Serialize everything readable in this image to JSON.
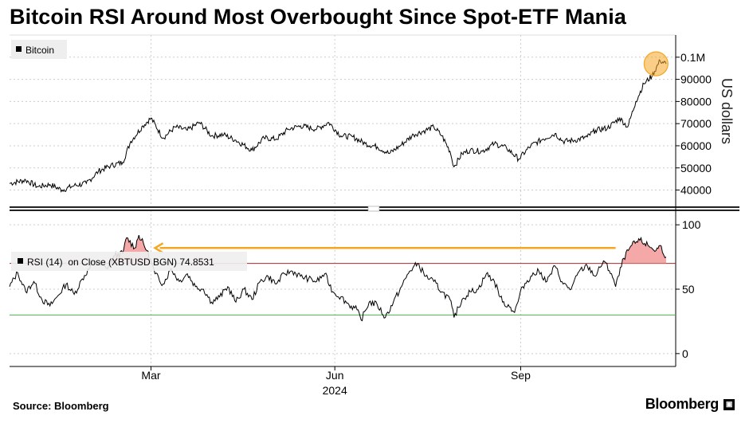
{
  "title": "Bitcoin RSI Around Most Overbought Since Spot-ETF Mania",
  "source": "Source: Bloomberg",
  "brand": "Bloomberg",
  "colors": {
    "price": "#000000",
    "rsi": "#000000",
    "overbought_line": "#a52a2a",
    "oversold_line": "#4caf50",
    "overbought_fill": "#f28b8b",
    "arrow": "#f5a623",
    "highlight": "#f5a623",
    "grid": "#cccccc"
  },
  "chart_data": [
    {
      "type": "line",
      "title": "Bitcoin",
      "legend": "Bitcoin",
      "ylabel": "US dollars",
      "ylim": [
        33000,
        110000
      ],
      "yticks": [
        40000,
        50000,
        60000,
        70000,
        80000,
        90000,
        100000
      ],
      "ytick_labels": [
        "40000",
        "50000",
        "60000",
        "70000",
        "80000",
        "90000",
        "0.1M"
      ],
      "xlim": [
        0,
        325
      ],
      "x_ticks": [
        70,
        161,
        253
      ],
      "x_tick_labels": [
        "Mar",
        "Jun",
        "Sep"
      ],
      "x_year_label": "2024",
      "x_year_pos": 161,
      "anchors": [
        [
          0,
          43000
        ],
        [
          8,
          44500
        ],
        [
          14,
          41500
        ],
        [
          20,
          42500
        ],
        [
          26,
          40000
        ],
        [
          32,
          42000
        ],
        [
          38,
          43000
        ],
        [
          44,
          48500
        ],
        [
          50,
          51000
        ],
        [
          56,
          52500
        ],
        [
          60,
          62000
        ],
        [
          66,
          69000
        ],
        [
          70,
          72500
        ],
        [
          76,
          63500
        ],
        [
          82,
          68500
        ],
        [
          88,
          67000
        ],
        [
          94,
          70500
        ],
        [
          100,
          64500
        ],
        [
          106,
          65000
        ],
        [
          112,
          62500
        ],
        [
          120,
          58000
        ],
        [
          126,
          63500
        ],
        [
          132,
          63000
        ],
        [
          138,
          67500
        ],
        [
          144,
          69000
        ],
        [
          152,
          67500
        ],
        [
          158,
          70500
        ],
        [
          164,
          64500
        ],
        [
          170,
          64000
        ],
        [
          176,
          61000
        ],
        [
          182,
          59500
        ],
        [
          188,
          56500
        ],
        [
          194,
          60500
        ],
        [
          200,
          65000
        ],
        [
          206,
          67000
        ],
        [
          210,
          68500
        ],
        [
          214,
          64500
        ],
        [
          218,
          57500
        ],
        [
          220,
          50500
        ],
        [
          224,
          56500
        ],
        [
          228,
          58000
        ],
        [
          234,
          57500
        ],
        [
          240,
          61000
        ],
        [
          246,
          59000
        ],
        [
          252,
          54000
        ],
        [
          258,
          60000
        ],
        [
          264,
          63000
        ],
        [
          270,
          65500
        ],
        [
          274,
          62000
        ],
        [
          280,
          62500
        ],
        [
          286,
          64000
        ],
        [
          290,
          67000
        ],
        [
          296,
          68000
        ],
        [
          302,
          72500
        ],
        [
          306,
          68500
        ],
        [
          310,
          80000
        ],
        [
          314,
          88000
        ],
        [
          318,
          91500
        ],
        [
          322,
          98500
        ],
        [
          325,
          97000
        ]
      ]
    },
    {
      "type": "line",
      "title": "RSI",
      "legend": "RSI (14)  on Close (XBTUSD BGN) 74.8531",
      "series_name": "RSI (14) on Close (XBTUSD BGN)",
      "last_value": 74.8531,
      "ylim": [
        -10,
        110
      ],
      "yticks": [
        0,
        50,
        100
      ],
      "ytick_labels": [
        "0",
        "50",
        "100"
      ],
      "overbought": 70,
      "oversold": 30,
      "xlim": [
        0,
        325
      ],
      "anchors": [
        [
          0,
          52
        ],
        [
          4,
          63
        ],
        [
          8,
          48
        ],
        [
          12,
          56
        ],
        [
          16,
          42
        ],
        [
          20,
          37
        ],
        [
          24,
          45
        ],
        [
          28,
          54
        ],
        [
          32,
          46
        ],
        [
          36,
          58
        ],
        [
          42,
          72
        ],
        [
          48,
          66
        ],
        [
          52,
          76
        ],
        [
          56,
          78
        ],
        [
          58,
          90
        ],
        [
          62,
          82
        ],
        [
          64,
          92
        ],
        [
          68,
          80
        ],
        [
          72,
          62
        ],
        [
          76,
          54
        ],
        [
          80,
          66
        ],
        [
          84,
          56
        ],
        [
          88,
          62
        ],
        [
          92,
          52
        ],
        [
          96,
          50
        ],
        [
          100,
          40
        ],
        [
          104,
          44
        ],
        [
          108,
          52
        ],
        [
          112,
          40
        ],
        [
          116,
          50
        ],
        [
          120,
          42
        ],
        [
          124,
          56
        ],
        [
          128,
          60
        ],
        [
          132,
          54
        ],
        [
          136,
          62
        ],
        [
          140,
          64
        ],
        [
          144,
          60
        ],
        [
          148,
          58
        ],
        [
          152,
          56
        ],
        [
          156,
          62
        ],
        [
          160,
          48
        ],
        [
          164,
          44
        ],
        [
          168,
          38
        ],
        [
          172,
          34
        ],
        [
          174,
          26
        ],
        [
          178,
          40
        ],
        [
          182,
          38
        ],
        [
          186,
          28
        ],
        [
          190,
          40
        ],
        [
          194,
          52
        ],
        [
          198,
          64
        ],
        [
          202,
          70
        ],
        [
          206,
          60
        ],
        [
          210,
          56
        ],
        [
          214,
          48
        ],
        [
          218,
          42
        ],
        [
          220,
          28
        ],
        [
          224,
          42
        ],
        [
          228,
          48
        ],
        [
          232,
          50
        ],
        [
          236,
          62
        ],
        [
          240,
          56
        ],
        [
          244,
          40
        ],
        [
          248,
          36
        ],
        [
          250,
          32
        ],
        [
          254,
          52
        ],
        [
          258,
          60
        ],
        [
          262,
          64
        ],
        [
          266,
          56
        ],
        [
          270,
          68
        ],
        [
          274,
          54
        ],
        [
          278,
          50
        ],
        [
          282,
          64
        ],
        [
          286,
          68
        ],
        [
          290,
          60
        ],
        [
          294,
          72
        ],
        [
          298,
          62
        ],
        [
          300,
          52
        ],
        [
          304,
          74
        ],
        [
          308,
          84
        ],
        [
          312,
          88
        ],
        [
          316,
          84
        ],
        [
          320,
          80
        ],
        [
          322,
          84
        ],
        [
          325,
          75
        ]
      ],
      "annotations": [
        {
          "type": "arrow",
          "from_x": 300,
          "to_x": 72,
          "y": 82
        },
        {
          "type": "circle",
          "x": 320,
          "y": 97000,
          "panel": "price"
        }
      ]
    }
  ]
}
